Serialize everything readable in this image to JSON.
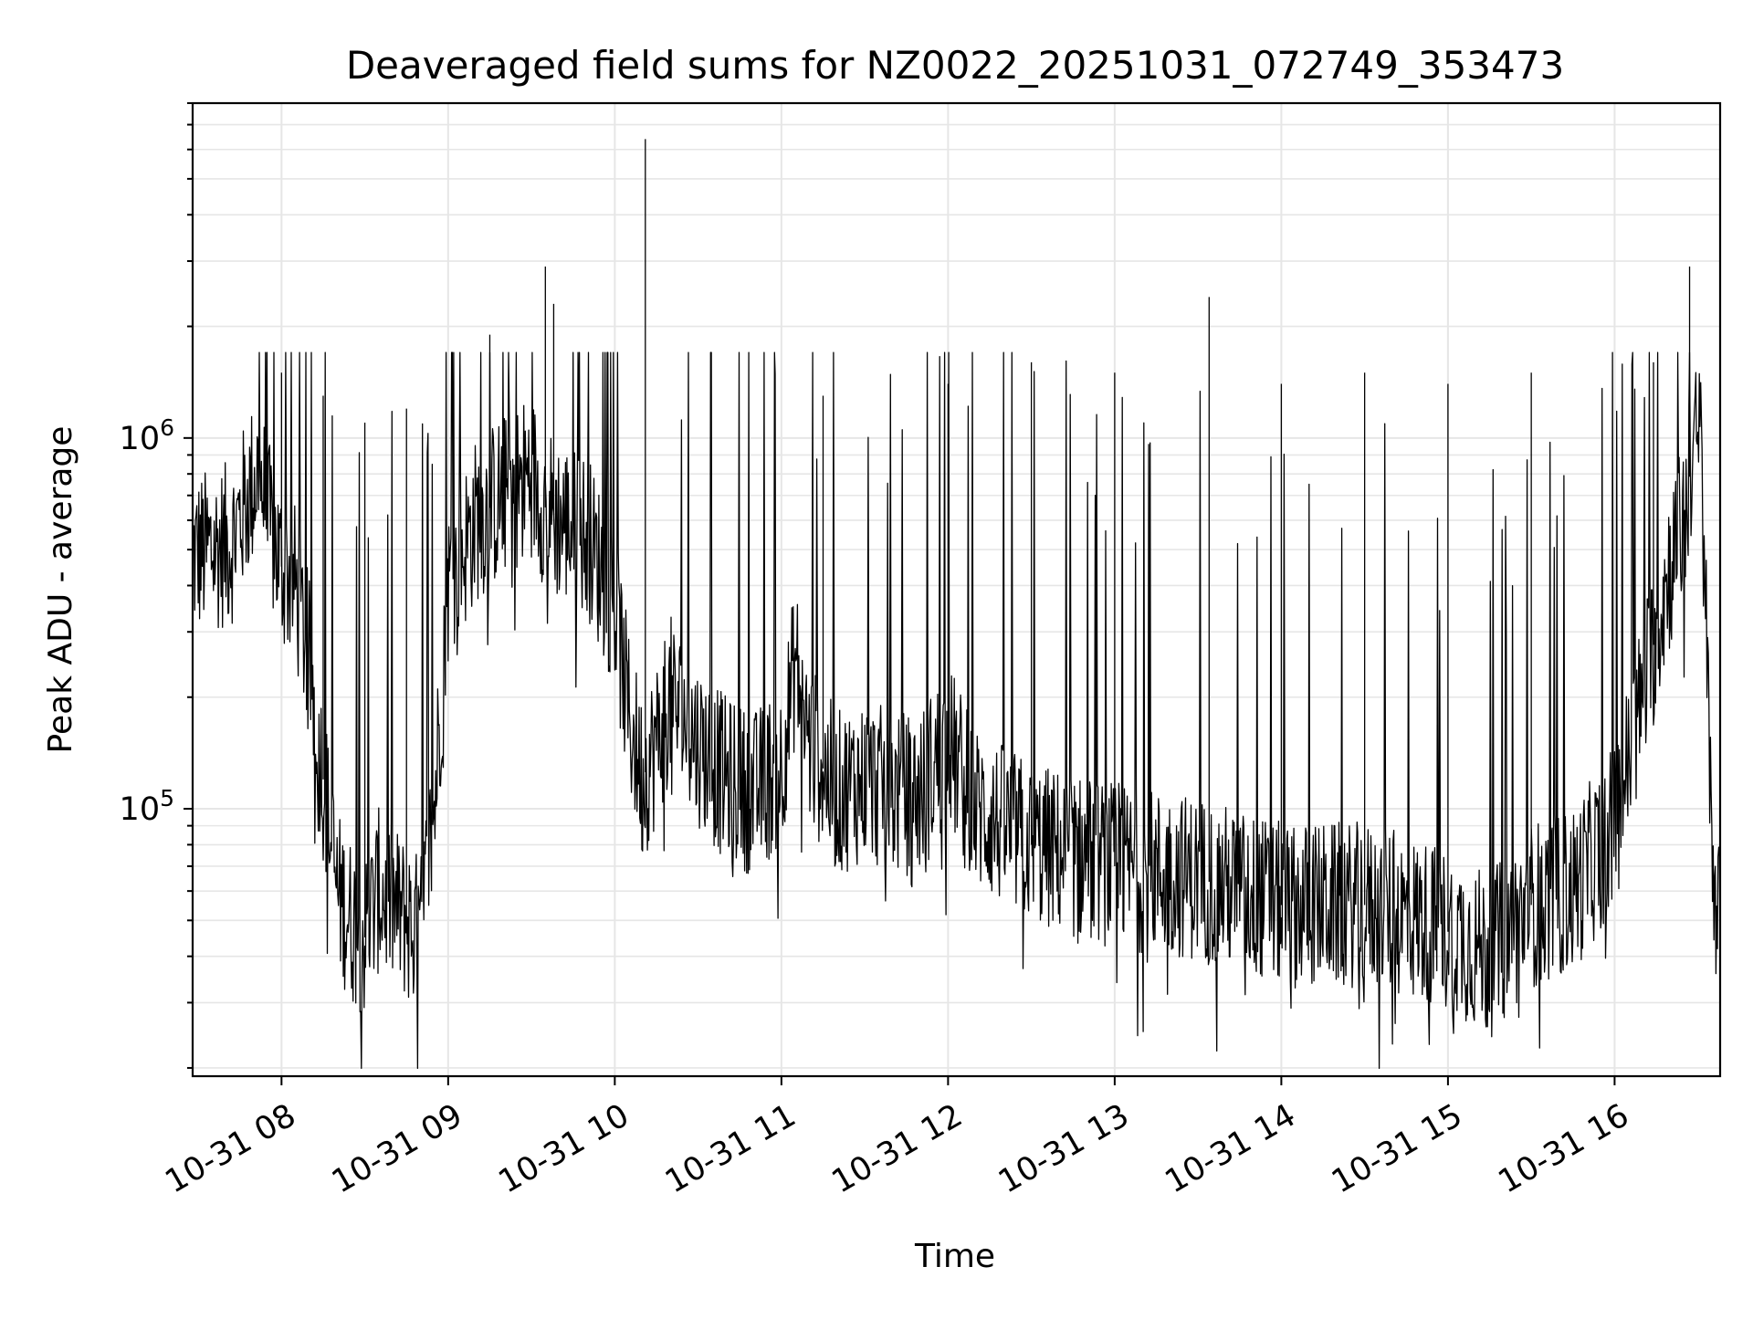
{
  "chart_data": {
    "type": "line",
    "title": "Deaveraged field sums for NZ0022_20251031_072749_353473",
    "xlabel": "Time",
    "ylabel": "Peak ADU - average",
    "yscale": "log",
    "ylim": [
      19000,
      8000000
    ],
    "xlim": [
      "2025-10-31 07:28",
      "2025-10-31 16:38"
    ],
    "x_ticks": [
      {
        "t": "2025-10-31 08:00",
        "label": "10-31 08"
      },
      {
        "t": "2025-10-31 09:00",
        "label": "10-31 09"
      },
      {
        "t": "2025-10-31 10:00",
        "label": "10-31 10"
      },
      {
        "t": "2025-10-31 11:00",
        "label": "10-31 11"
      },
      {
        "t": "2025-10-31 12:00",
        "label": "10-31 12"
      },
      {
        "t": "2025-10-31 13:00",
        "label": "10-31 13"
      },
      {
        "t": "2025-10-31 14:00",
        "label": "10-31 14"
      },
      {
        "t": "2025-10-31 15:00",
        "label": "10-31 15"
      },
      {
        "t": "2025-10-31 16:00",
        "label": "10-31 16"
      }
    ],
    "y_ticks": [
      {
        "value": 100000,
        "base": "10",
        "exp": "5"
      },
      {
        "value": 1000000,
        "base": "10",
        "exp": "6"
      }
    ],
    "grid": "major and minor",
    "legend": "none",
    "line_color": "#000000",
    "series": [
      {
        "x": [
          "2025-10-31 07:28",
          "2025-10-31 07:35",
          "2025-10-31 07:42",
          "2025-10-31 07:48",
          "2025-10-31 07:52",
          "2025-10-31 07:55",
          "2025-10-31 08:00",
          "2025-10-31 08:05",
          "2025-10-31 08:10",
          "2025-10-31 08:15",
          "2025-10-31 08:20",
          "2025-10-31 08:25",
          "2025-10-31 08:30",
          "2025-10-31 08:35",
          "2025-10-31 08:40",
          "2025-10-31 08:45",
          "2025-10-31 08:50",
          "2025-10-31 08:55",
          "2025-10-31 09:00",
          "2025-10-31 09:10",
          "2025-10-31 09:20",
          "2025-10-31 09:30",
          "2025-10-31 09:35",
          "2025-10-31 09:40",
          "2025-10-31 09:50",
          "2025-10-31 10:00",
          "2025-10-31 10:05",
          "2025-10-31 10:10",
          "2025-10-31 10:15",
          "2025-10-31 10:20",
          "2025-10-31 10:30",
          "2025-10-31 10:40",
          "2025-10-31 10:50",
          "2025-10-31 11:00",
          "2025-10-31 11:05",
          "2025-10-31 11:10",
          "2025-10-31 11:20",
          "2025-10-31 11:30",
          "2025-10-31 11:40",
          "2025-10-31 11:50",
          "2025-10-31 12:00",
          "2025-10-31 12:10",
          "2025-10-31 12:30",
          "2025-10-31 13:00",
          "2025-10-31 13:30",
          "2025-10-31 14:00",
          "2025-10-31 14:30",
          "2025-10-31 14:50",
          "2025-10-31 15:05",
          "2025-10-31 15:15",
          "2025-10-31 15:30",
          "2025-10-31 15:45",
          "2025-10-31 16:00",
          "2025-10-31 16:10",
          "2025-10-31 16:20",
          "2025-10-31 16:25",
          "2025-10-31 16:28",
          "2025-10-31 16:31",
          "2025-10-31 16:33",
          "2025-10-31 16:35",
          "2025-10-31 16:38"
        ],
        "values": [
          480000,
          500000,
          520000,
          700000,
          820000,
          600000,
          450000,
          400000,
          250000,
          120000,
          60000,
          50000,
          45000,
          60000,
          55000,
          50000,
          45000,
          100000,
          400000,
          600000,
          700000,
          800000,
          650000,
          600000,
          550000,
          350000,
          180000,
          120000,
          150000,
          200000,
          150000,
          120000,
          110000,
          130000,
          250000,
          150000,
          110000,
          120000,
          110000,
          110000,
          150000,
          100000,
          80000,
          70000,
          65000,
          55000,
          55000,
          50000,
          45000,
          40000,
          55000,
          60000,
          90000,
          200000,
          450000,
          600000,
          900000,
          1000000,
          300000,
          80000,
          45000
        ]
      }
    ],
    "spikes": [
      {
        "t": "2025-10-31 08:00",
        "value": 1500000
      },
      {
        "t": "2025-10-31 08:15",
        "value": 1300000
      },
      {
        "t": "2025-10-31 08:30",
        "value": 1100000
      },
      {
        "t": "2025-10-31 08:45",
        "value": 1200000
      },
      {
        "t": "2025-10-31 09:15",
        "value": 1900000
      },
      {
        "t": "2025-10-31 09:35",
        "value": 2900000
      },
      {
        "t": "2025-10-31 09:38",
        "value": 2300000
      },
      {
        "t": "2025-10-31 10:11",
        "value": 6400000
      },
      {
        "t": "2025-10-31 11:15",
        "value": 1300000
      },
      {
        "t": "2025-10-31 12:00",
        "value": 1400000
      },
      {
        "t": "2025-10-31 12:30",
        "value": 1600000
      },
      {
        "t": "2025-10-31 13:00",
        "value": 1500000
      },
      {
        "t": "2025-10-31 13:34",
        "value": 2400000
      },
      {
        "t": "2025-10-31 14:00",
        "value": 1400000
      },
      {
        "t": "2025-10-31 14:30",
        "value": 1500000
      },
      {
        "t": "2025-10-31 15:00",
        "value": 1400000
      },
      {
        "t": "2025-10-31 15:30",
        "value": 1500000
      },
      {
        "t": "2025-10-31 16:14",
        "value": 1600000
      },
      {
        "t": "2025-10-31 16:27",
        "value": 2900000
      }
    ]
  }
}
